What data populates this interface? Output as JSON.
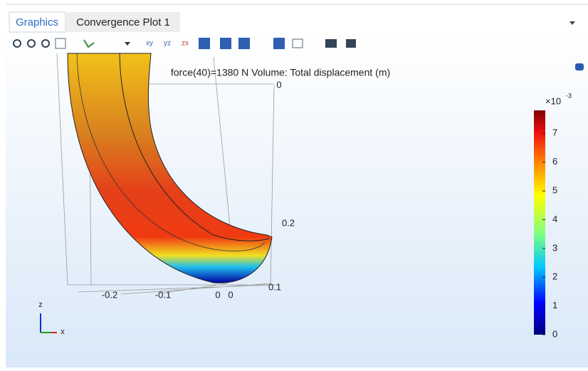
{
  "tabs": [
    "Graphics",
    "Convergence Plot 1"
  ],
  "plot": {
    "title": "force(40)=1380 N  Volume: Total displacement (m)",
    "axis_labels": [
      "0",
      "0.2",
      "0.1",
      "-0.2",
      "-0.1",
      "0",
      "0"
    ],
    "triad": [
      "z",
      "x"
    ]
  },
  "colorbar": {
    "multiplier": "×10",
    "exponent": "-3",
    "range": [
      0,
      7.8
    ],
    "ticks": [
      0,
      1,
      2,
      3,
      4,
      5,
      6,
      7
    ]
  }
}
